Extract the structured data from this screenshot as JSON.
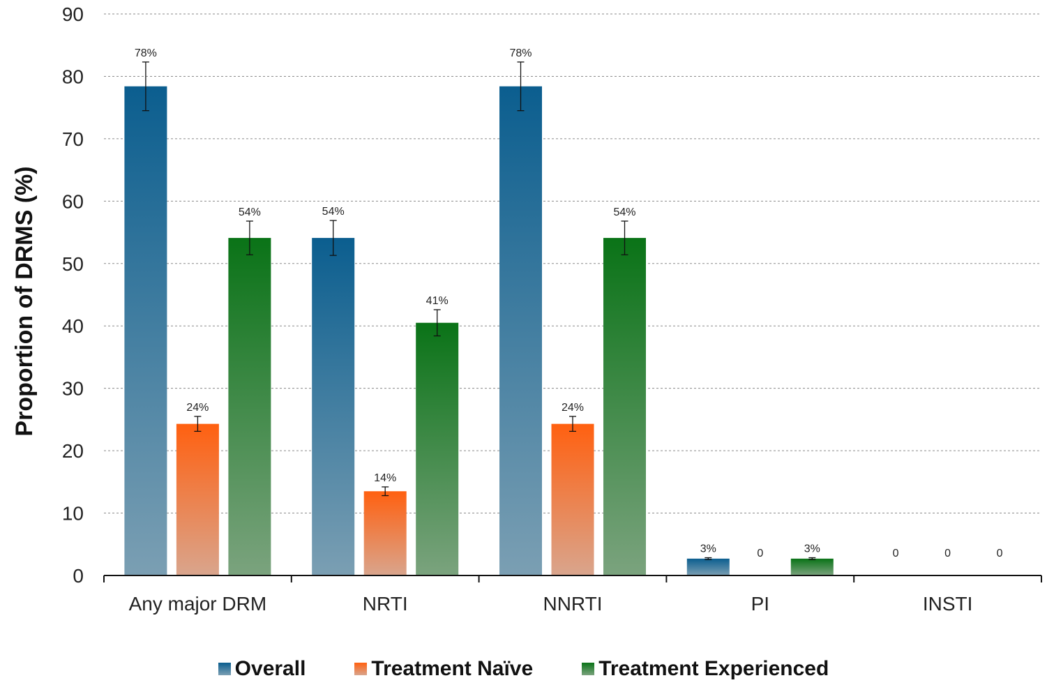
{
  "chart_data": {
    "type": "bar",
    "title": "",
    "xlabel": "",
    "ylabel": "Proportion of DRMS (%)",
    "ylim": [
      0,
      90
    ],
    "yticks": [
      0,
      10,
      20,
      30,
      40,
      50,
      60,
      70,
      80,
      90
    ],
    "grid": true,
    "legend_position": "bottom",
    "categories": [
      "Any major DRM",
      "NRTI",
      "NNRTI",
      "PI",
      "INSTI"
    ],
    "series": [
      {
        "name": "Overall",
        "color_top": "#0b5e8f",
        "color_bottom": "#7b9fb3",
        "values": [
          78.4,
          54.1,
          78.4,
          2.7,
          0
        ],
        "errors": [
          3.9,
          2.8,
          3.9,
          0.15,
          0
        ],
        "labels": [
          "78%",
          "54%",
          "78%",
          "3%",
          "0"
        ]
      },
      {
        "name": "Treatment Naïve",
        "color_top": "#ff6010",
        "color_bottom": "#d9a58d",
        "values": [
          24.3,
          13.5,
          24.3,
          0,
          0
        ],
        "errors": [
          1.2,
          0.7,
          1.2,
          0,
          0
        ],
        "labels": [
          "24%",
          "14%",
          "24%",
          "0",
          "0"
        ]
      },
      {
        "name": "Treatment Experienced",
        "color_top": "#0a7317",
        "color_bottom": "#7ba37e",
        "values": [
          54.1,
          40.5,
          54.1,
          2.7,
          0
        ],
        "errors": [
          2.7,
          2.1,
          2.7,
          0.15,
          0
        ],
        "labels": [
          "54%",
          "41%",
          "54%",
          "3%",
          "0"
        ]
      }
    ]
  }
}
